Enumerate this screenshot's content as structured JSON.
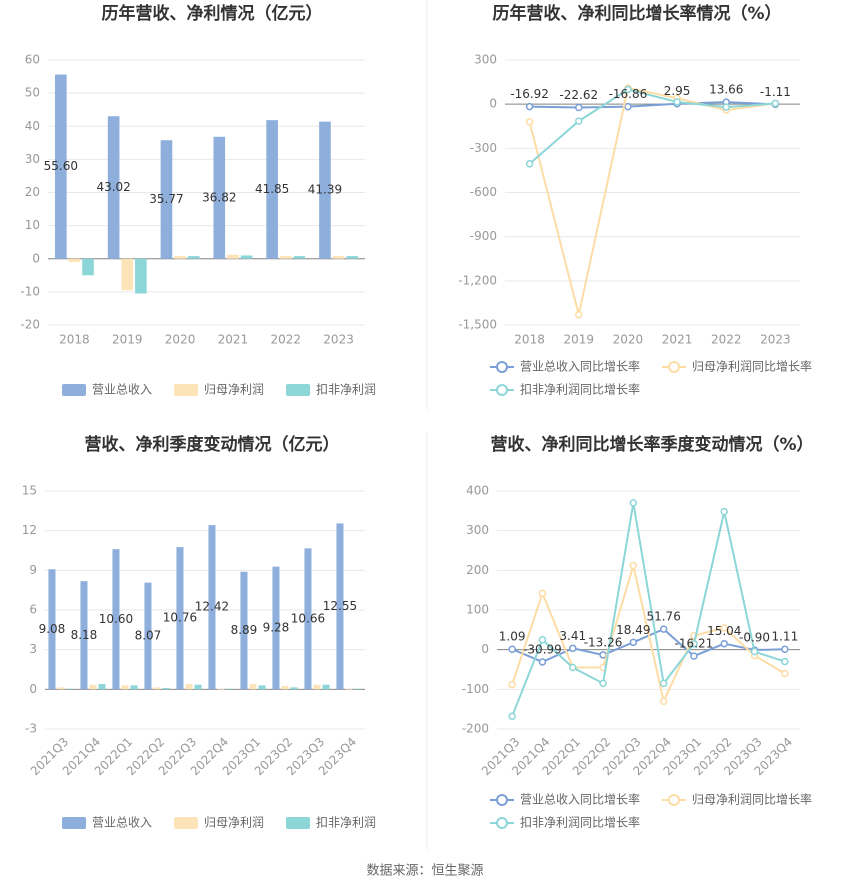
{
  "chart_data": [
    {
      "type": "bar",
      "title": "历年营收、净利情况（亿元）",
      "categories": [
        "2018",
        "2019",
        "2020",
        "2021",
        "2022",
        "2023"
      ],
      "series": [
        {
          "name": "营业总收入",
          "color": "#8eaedc",
          "values": [
            55.6,
            43.02,
            35.77,
            36.82,
            41.85,
            41.39
          ],
          "value_labels": [
            "55.60",
            "43.02",
            "35.77",
            "36.82",
            "41.85",
            "41.39"
          ]
        },
        {
          "name": "归母净利润",
          "color": "#fde3b8",
          "values": [
            -1,
            -9.5,
            0.8,
            1.2,
            0.8,
            0.8
          ]
        },
        {
          "name": "扣非净利润",
          "color": "#8dd6d8",
          "values": [
            -5,
            -10.5,
            0.8,
            1.0,
            0.8,
            0.8
          ]
        }
      ],
      "ylim": [
        -20,
        60
      ],
      "yticks": [
        -20,
        -10,
        0,
        10,
        20,
        30,
        40,
        50,
        60
      ],
      "grid": true,
      "legend": "bottom"
    },
    {
      "type": "line",
      "title": "历年营收、净利同比增长率情况（%）",
      "categories": [
        "2018",
        "2019",
        "2020",
        "2021",
        "2022",
        "2023"
      ],
      "series": [
        {
          "name": "营业总收入同比增长率",
          "color": "#7a9fd6",
          "values": [
            -16.92,
            -22.62,
            -16.86,
            2.95,
            13.66,
            -1.11
          ],
          "value_labels": [
            "-16.92",
            "-22.62",
            "-16.86",
            "2.95",
            "13.66",
            "-1.11"
          ]
        },
        {
          "name": "归母净利润同比增长率",
          "color": "#fddca5",
          "values": [
            -120,
            -1430,
            110,
            40,
            -40,
            5
          ]
        },
        {
          "name": "扣非净利润同比增长率",
          "color": "#8dd6d8",
          "values": [
            -405,
            -115,
            100,
            15,
            -20,
            5
          ]
        }
      ],
      "ylim": [
        -1500,
        300
      ],
      "yticks": [
        {
          "value": -1500,
          "label": "-1,500"
        },
        {
          "value": -1200,
          "label": "-1,200"
        },
        -900,
        -600,
        -300,
        0,
        300
      ],
      "grid": true,
      "legend": "bottom"
    },
    {
      "type": "bar",
      "title": "营收、净利季度变动情况（亿元）",
      "categories": [
        "2021Q3",
        "2021Q4",
        "2022Q1",
        "2022Q2",
        "2022Q3",
        "2022Q4",
        "2023Q1",
        "2023Q2",
        "2023Q3",
        "2023Q4"
      ],
      "series": [
        {
          "name": "营业总收入",
          "color": "#8eaedc",
          "values": [
            9.08,
            8.18,
            10.6,
            8.07,
            10.76,
            12.42,
            8.89,
            9.28,
            10.66,
            12.55
          ],
          "value_labels": [
            "9.08",
            "8.18",
            "10.60",
            "8.07",
            "10.76",
            "12.42",
            "8.89",
            "9.28",
            "10.66",
            "12.55"
          ]
        },
        {
          "name": "归母净利润",
          "color": "#fde3b8",
          "values": [
            0.15,
            0.35,
            0.3,
            0.15,
            0.4,
            -0.05,
            0.4,
            0.25,
            0.35,
            -0.05
          ]
        },
        {
          "name": "扣非净利润",
          "color": "#8dd6d8",
          "values": [
            0.05,
            0.4,
            0.3,
            0.1,
            0.35,
            0.05,
            0.3,
            0.15,
            0.35,
            0.05
          ]
        }
      ],
      "ylim": [
        -3,
        15
      ],
      "yticks": [
        -3,
        0,
        3,
        6,
        9,
        12,
        15
      ],
      "grid": true,
      "legend": "bottom"
    },
    {
      "type": "line",
      "title": "营收、净利同比增长率季度变动情况（%）",
      "categories": [
        "2021Q3",
        "2021Q4",
        "2022Q1",
        "2022Q2",
        "2022Q3",
        "2022Q4",
        "2023Q1",
        "2023Q2",
        "2023Q3",
        "2023Q4"
      ],
      "series": [
        {
          "name": "营业总收入同比增长率",
          "color": "#7a9fd6",
          "values": [
            1.09,
            -30.99,
            3.41,
            -13.26,
            18.49,
            51.76,
            -16.21,
            15.04,
            -0.9,
            1.11
          ],
          "value_labels": [
            "1.09",
            "-30.99",
            "3.41",
            "-13.26",
            "18.49",
            "51.76",
            "-16.21",
            "15.04",
            "-0.90",
            "1.11"
          ]
        },
        {
          "name": "归母净利润同比增长率",
          "color": "#fddca5",
          "values": [
            -88,
            142,
            -45,
            -45,
            212,
            -130,
            35,
            55,
            -15,
            -60
          ]
        },
        {
          "name": "扣非净利润同比增长率",
          "color": "#8dd6d8",
          "values": [
            -168,
            25,
            -45,
            -85,
            370,
            -85,
            15,
            348,
            -5,
            -30
          ]
        }
      ],
      "ylim": [
        -200,
        400
      ],
      "yticks": [
        -200,
        -100,
        0,
        100,
        200,
        300,
        400
      ],
      "grid": true,
      "legend": "bottom"
    }
  ],
  "source": "数据来源：恒生聚源"
}
